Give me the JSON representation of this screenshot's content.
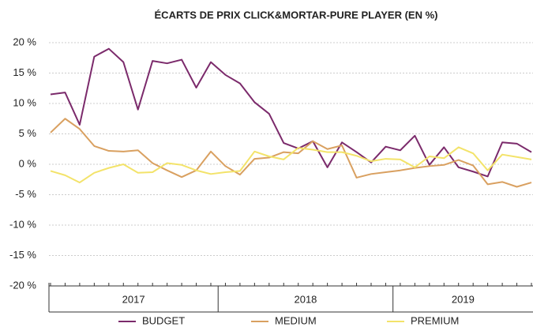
{
  "chart_data": {
    "type": "line",
    "title": "ÉCARTS DE PRIX CLICK&MORTAR-PURE PLAYER (EN %)",
    "categories": [
      null,
      null,
      null,
      null,
      null,
      null,
      null,
      null,
      null,
      null,
      null,
      null,
      null,
      null,
      null,
      null,
      null,
      null,
      null,
      null,
      null,
      null,
      null,
      null,
      null,
      null,
      null,
      null,
      null,
      null,
      null,
      null,
      null,
      null
    ],
    "groups": [
      {
        "label": "2017",
        "size": 12
      },
      {
        "label": "2018",
        "size": 12
      },
      {
        "label": "2019",
        "size": 10
      }
    ],
    "series": [
      {
        "name": "BUDGET",
        "color": "#7b2a6b",
        "values": [
          11.5,
          11.8,
          6.5,
          17.7,
          19,
          16.8,
          9,
          17,
          16.6,
          17.2,
          12.6,
          16.8,
          14.7,
          13.3,
          10.2,
          8.3,
          3.5,
          2.6,
          3.8,
          -0.5,
          3.6,
          2,
          0.3,
          2.9,
          2.3,
          4.7,
          -0.1,
          2.8,
          -0.5,
          -1.2,
          -2,
          3.6,
          3.4,
          2
        ]
      },
      {
        "name": "MEDIUM",
        "color": "#d9a060",
        "values": [
          5.2,
          7.5,
          5.8,
          3,
          2.2,
          2.1,
          2.3,
          0.2,
          -1,
          -2.1,
          -1,
          2.1,
          -0.3,
          -1.7,
          0.9,
          1.1,
          2,
          1.8,
          3.8,
          2.5,
          3.1,
          -2.2,
          -1.6,
          -1.3,
          -1,
          -0.6,
          -0.3,
          -0.1,
          0.7,
          -0.2,
          -3.3,
          -2.9,
          -3.7,
          -3
        ]
      },
      {
        "name": "PREMIUM",
        "color": "#f3e36a",
        "values": [
          -1.1,
          -1.8,
          -3,
          -1.4,
          -0.6,
          0,
          -1.4,
          -1.3,
          0.2,
          -0.1,
          -1,
          -1.6,
          -1.3,
          -1.1,
          2.1,
          1.3,
          0.8,
          2.7,
          2.4,
          2,
          2,
          1.4,
          0.5,
          0.9,
          0.8,
          -0.5,
          1.3,
          1,
          2.8,
          1.8,
          -1,
          1.6,
          1.2,
          0.8
        ]
      }
    ],
    "ylim": [
      -20,
      20
    ],
    "yticks": [
      {
        "value": 20,
        "label": "20 %"
      },
      {
        "value": 15,
        "label": "15 %"
      },
      {
        "value": 10,
        "label": "10 %"
      },
      {
        "value": 5,
        "label": "5 %"
      },
      {
        "value": 0,
        "label": "0 %"
      },
      {
        "value": -5,
        "label": "-5 %"
      },
      {
        "value": -10,
        "label": "-10 %"
      },
      {
        "value": -15,
        "label": "-15 %"
      },
      {
        "value": -20,
        "label": "-20 %"
      }
    ],
    "grid": true
  }
}
